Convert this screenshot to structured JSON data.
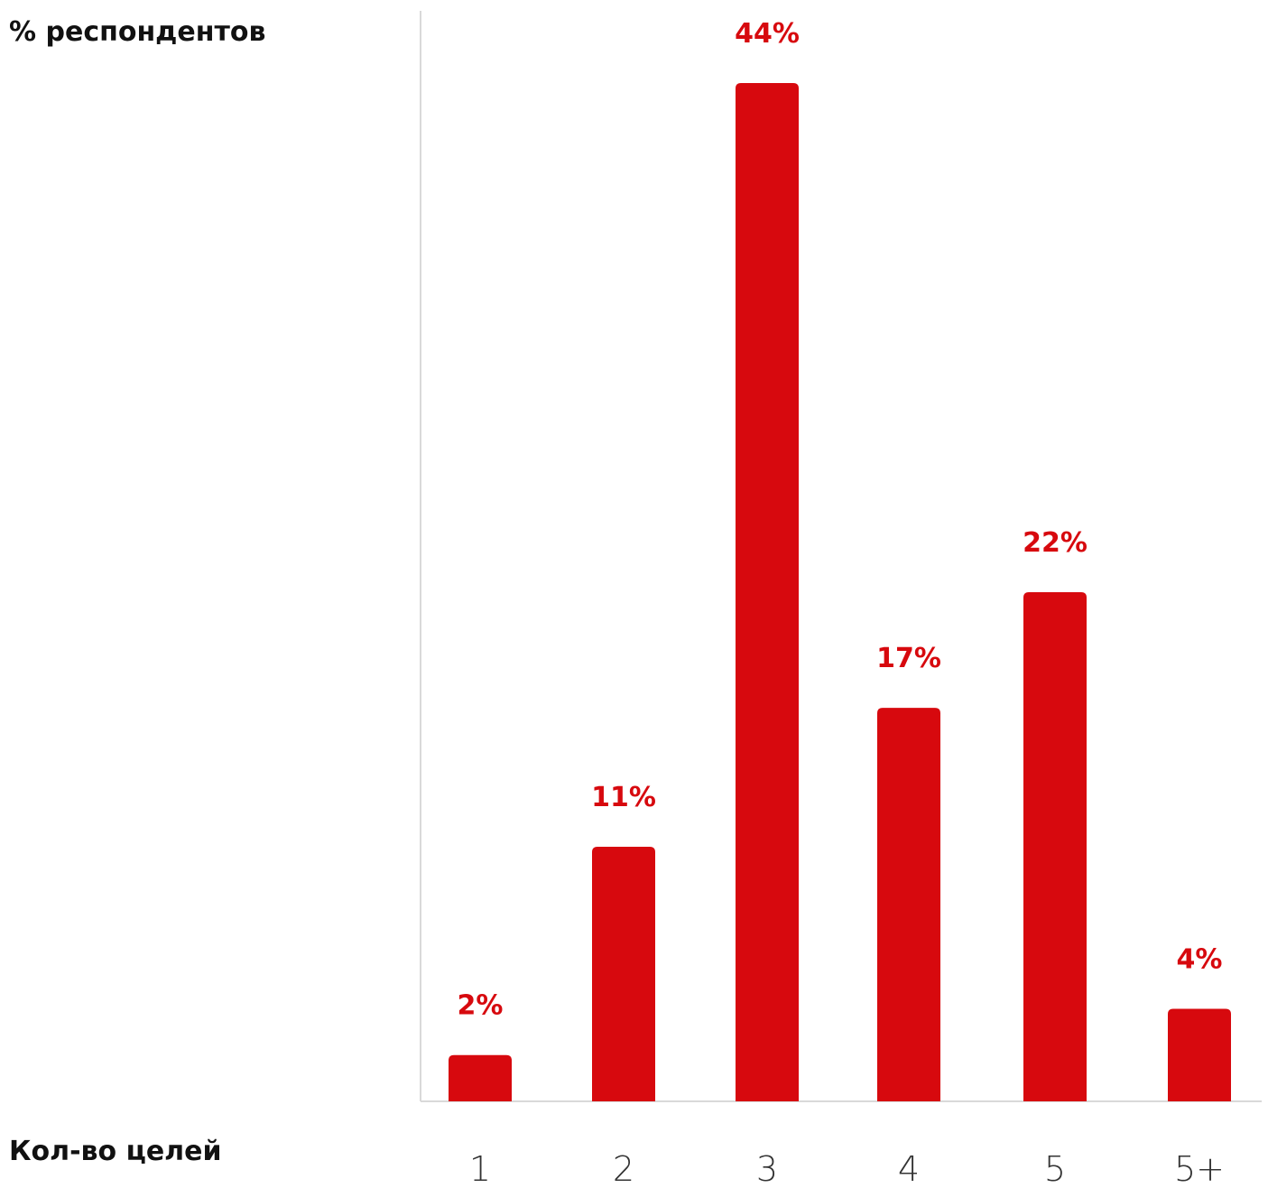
{
  "chart_data": {
    "type": "bar",
    "ylabel": "% респондентов",
    "xlabel": "Кол-во целей",
    "categories": [
      "1",
      "2",
      "3",
      "4",
      "5",
      "5+"
    ],
    "values": [
      2,
      11,
      44,
      17,
      22,
      4
    ],
    "value_labels": [
      "2%",
      "11%",
      "44%",
      "17%",
      "22%",
      "4%"
    ],
    "ylim": [
      0,
      44
    ],
    "grid": false,
    "bar_color": "#d7090e",
    "label_color": "#d7090e",
    "axis_color": "#d9d9d9"
  }
}
